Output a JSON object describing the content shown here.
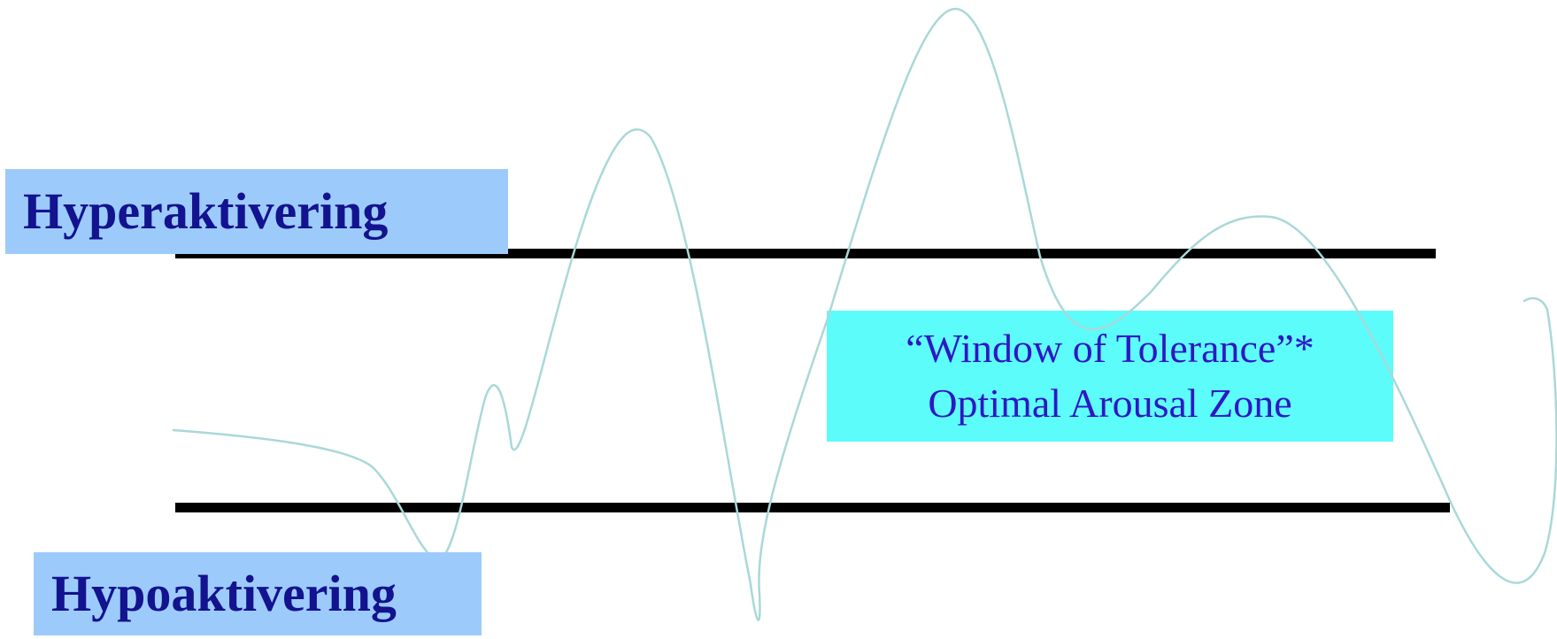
{
  "labels": {
    "hyper": "Hyperaktivering",
    "hypo": "Hypoaktivering",
    "window_line1": "“Window of Tolerance”*",
    "window_line2": "Optimal Arousal Zone"
  },
  "colors": {
    "label_box": "#9ccbfb",
    "label_text": "#13128f",
    "window_box": "#5cfcfb",
    "window_text": "#2f17c4",
    "threshold": "#000000",
    "wave": "#a9d8d8"
  }
}
